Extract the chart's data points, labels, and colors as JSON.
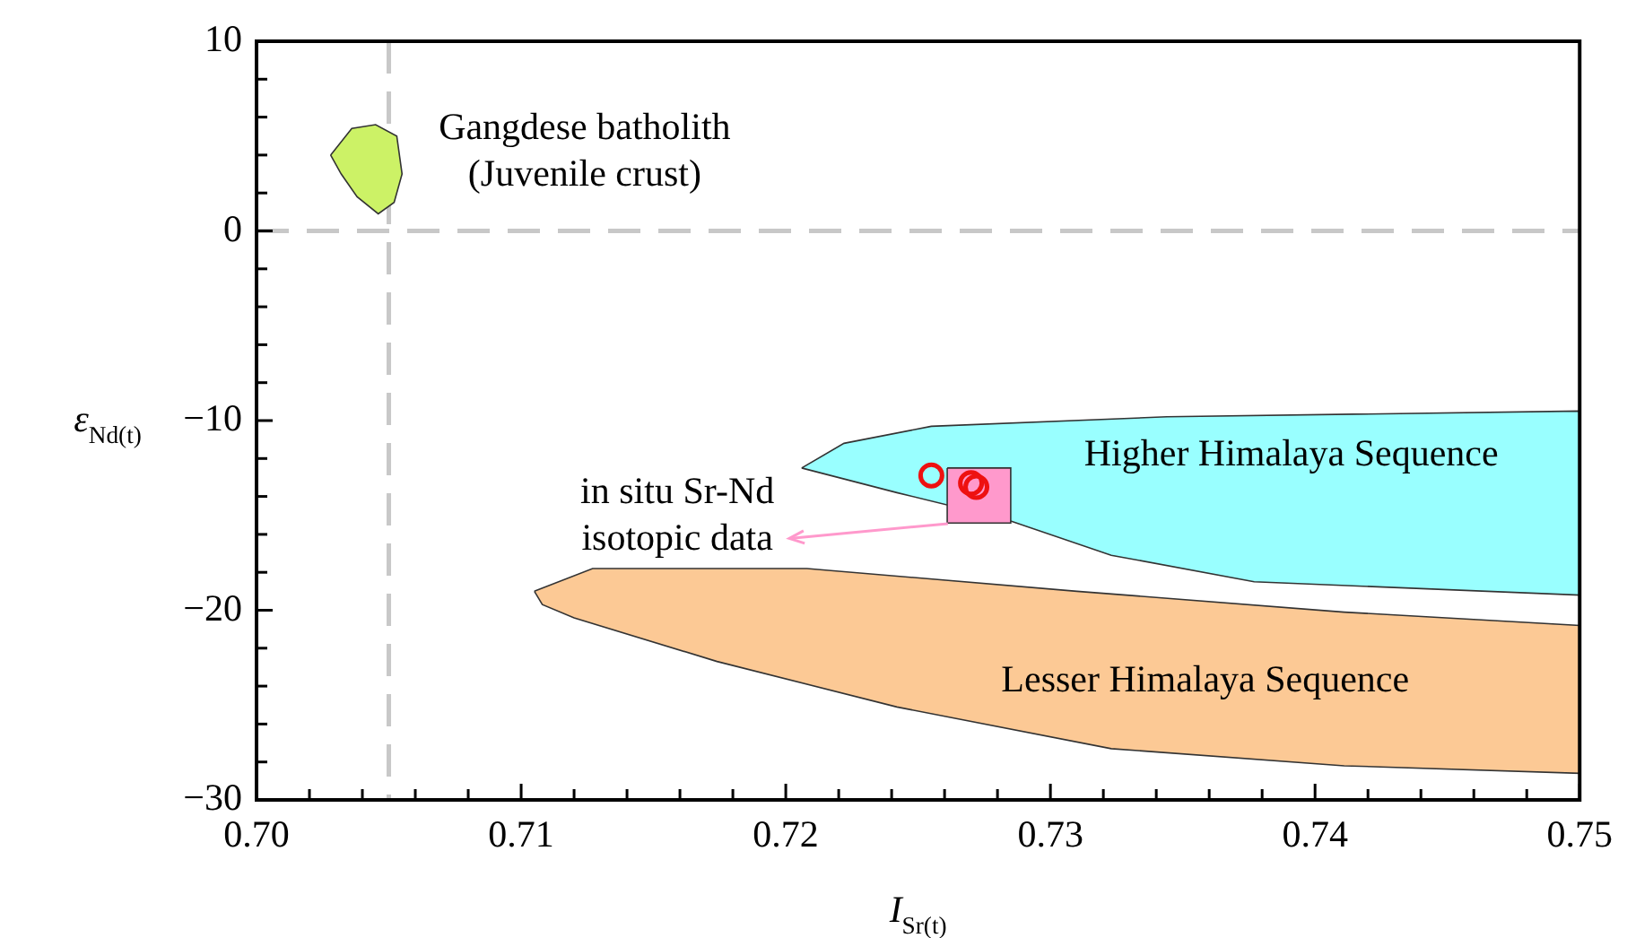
{
  "chart_data": {
    "type": "scatter",
    "xlabel": "I$_{Sr(t)}$",
    "ylabel": "ε$_{Nd(t)}$",
    "xlim": [
      0.7,
      0.75
    ],
    "ylim": [
      -30,
      10
    ],
    "xticks": [
      {
        "value": 0.7,
        "label": "0.70"
      },
      {
        "value": 0.702,
        "label": null
      },
      {
        "value": 0.704,
        "label": null
      },
      {
        "value": 0.706,
        "label": null
      },
      {
        "value": 0.708,
        "label": null
      },
      {
        "value": 0.71,
        "label": "0.71"
      },
      {
        "value": 0.712,
        "label": null
      },
      {
        "value": 0.714,
        "label": null
      },
      {
        "value": 0.716,
        "label": null
      },
      {
        "value": 0.718,
        "label": null
      },
      {
        "value": 0.72,
        "label": "0.72"
      },
      {
        "value": 0.722,
        "label": null
      },
      {
        "value": 0.724,
        "label": null
      },
      {
        "value": 0.726,
        "label": null
      },
      {
        "value": 0.728,
        "label": null
      },
      {
        "value": 0.73,
        "label": "0.73"
      },
      {
        "value": 0.732,
        "label": null
      },
      {
        "value": 0.734,
        "label": null
      },
      {
        "value": 0.736,
        "label": null
      },
      {
        "value": 0.738,
        "label": null
      },
      {
        "value": 0.74,
        "label": "0.74"
      },
      {
        "value": 0.742,
        "label": null
      },
      {
        "value": 0.744,
        "label": null
      },
      {
        "value": 0.746,
        "label": null
      },
      {
        "value": 0.748,
        "label": null
      },
      {
        "value": 0.75,
        "label": "0.75"
      }
    ],
    "yticks": [
      {
        "value": -30,
        "label": "−30"
      },
      {
        "value": -28,
        "label": null
      },
      {
        "value": -26,
        "label": null
      },
      {
        "value": -24,
        "label": null
      },
      {
        "value": -22,
        "label": null
      },
      {
        "value": -20,
        "label": "−20"
      },
      {
        "value": -18,
        "label": null
      },
      {
        "value": -16,
        "label": null
      },
      {
        "value": -14,
        "label": null
      },
      {
        "value": -12,
        "label": null
      },
      {
        "value": -10,
        "label": "−10"
      },
      {
        "value": -8,
        "label": null
      },
      {
        "value": -6,
        "label": null
      },
      {
        "value": -4,
        "label": null
      },
      {
        "value": -2,
        "label": null
      },
      {
        "value": 0,
        "label": "0"
      },
      {
        "value": 2,
        "label": null
      },
      {
        "value": 4,
        "label": null
      },
      {
        "value": 6,
        "label": null
      },
      {
        "value": 8,
        "label": null
      },
      {
        "value": 10,
        "label": "10"
      }
    ],
    "grid": false,
    "legend": false,
    "ref_lines": [
      {
        "axis": "x",
        "value": 0.705,
        "label": null,
        "color": "#c8c8c8",
        "line_style": "dashed"
      },
      {
        "axis": "y",
        "value": 0,
        "label": null,
        "color": "#c8c8c8",
        "line_style": "dashed"
      }
    ],
    "series": [
      {
        "type": "area",
        "name": "Gangdese batholith\n(Juvenile crust)",
        "color": "#ccf266",
        "x": [
          0.7028,
          0.7036,
          0.7045,
          0.7053,
          0.7055,
          0.7052,
          0.7046,
          0.7038,
          0.7032,
          0.7028
        ],
        "values": [
          4.0,
          5.4,
          5.6,
          5.0,
          3.0,
          1.5,
          0.9,
          1.8,
          3.0,
          4.0
        ]
      },
      {
        "type": "area",
        "name": "Higher Himalaya Sequence",
        "color": "#99ffff",
        "x": [
          0.7206,
          0.7222,
          0.7255,
          0.7344,
          0.75,
          0.75,
          0.7377,
          0.7323,
          0.7283,
          0.7242,
          0.7206
        ],
        "values": [
          -12.5,
          -11.2,
          -10.3,
          -9.8,
          -9.5,
          -19.2,
          -18.5,
          -17.1,
          -15.2,
          -13.8,
          -12.5
        ]
      },
      {
        "type": "area",
        "name": "Lesser Himalaya Sequence",
        "color": "#fcc995",
        "x": [
          0.7105,
          0.7127,
          0.7208,
          0.731,
          0.7411,
          0.75,
          0.75,
          0.7411,
          0.7323,
          0.7242,
          0.7174,
          0.712,
          0.7108,
          0.7105
        ],
        "values": [
          -19.0,
          -17.8,
          -17.8,
          -19.0,
          -20.1,
          -20.8,
          -28.6,
          -28.2,
          -27.3,
          -25.1,
          -22.7,
          -20.4,
          -19.7,
          -19.0
        ]
      },
      {
        "type": "area",
        "color": "#ff99cc",
        "x": [
          0.7261,
          0.7285,
          0.7285,
          0.7261,
          0.7261
        ],
        "values": [
          -12.5,
          -12.5,
          -15.4,
          -15.4,
          -12.5
        ]
      },
      {
        "type": "scatter",
        "color": "#ee1111",
        "marker": "circle",
        "x": [
          0.7255,
          0.727,
          0.7272
        ],
        "values": [
          -12.9,
          -13.3,
          -13.5
        ]
      }
    ],
    "annotations": [
      "in situ Sr-Nd\nisotopic data"
    ]
  }
}
